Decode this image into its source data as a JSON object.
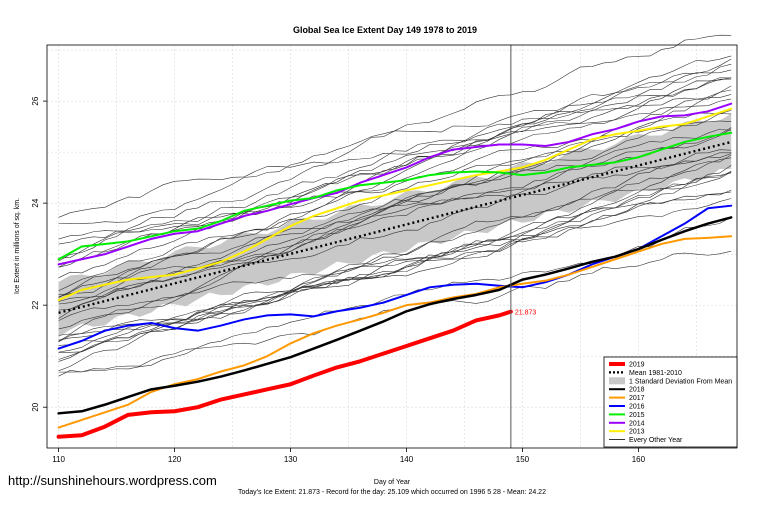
{
  "chart_data": {
    "type": "line",
    "title": "Global Sea Ice Extent Day 149 1978 to 2019",
    "xlabel": "Day of Year",
    "ylabel": "Ice Extent in millions of sq. km.",
    "xlim": [
      109,
      168.5
    ],
    "ylim": [
      19.2,
      27.1
    ],
    "x_ticks": [
      110,
      120,
      130,
      140,
      150,
      160
    ],
    "y_ticks": [
      20,
      22,
      24,
      26
    ],
    "grid": true,
    "current_day": 149,
    "legend_position": "bottom-right",
    "value_label": "21.873",
    "watermark": "http://sunshinehours.wordpress.com",
    "footer": "Today's Ice Extent: 21.873  - Record for the day: 25.109 which occurred on 1996 5 28  - Mean: 24.22",
    "legend": [
      {
        "label": "2019",
        "color": "#ff0000",
        "style": "thick"
      },
      {
        "label": "Mean 1981-2010",
        "color": "#000000",
        "style": "dotted"
      },
      {
        "label": "1 Standard Deviation From Mean",
        "color": "#c8c8c8",
        "style": "band"
      },
      {
        "label": "2018",
        "color": "#000000",
        "style": "line"
      },
      {
        "label": "2017",
        "color": "#ff9900",
        "style": "line"
      },
      {
        "label": "2016",
        "color": "#0000ff",
        "style": "line"
      },
      {
        "label": "2015",
        "color": "#00ee00",
        "style": "line"
      },
      {
        "label": "2014",
        "color": "#9900ff",
        "style": "line"
      },
      {
        "label": "2013",
        "color": "#ffee00",
        "style": "line"
      },
      {
        "label": "Every Other Year",
        "color": "#000000",
        "style": "thin"
      }
    ],
    "mean": {
      "x": [
        110,
        168
      ],
      "y": [
        21.85,
        25.2
      ]
    },
    "std_band": {
      "x": [
        110,
        168
      ],
      "lower": [
        21.45,
        24.65
      ],
      "upper": [
        22.45,
        25.75
      ]
    },
    "series": [
      {
        "name": "2019",
        "color": "#ff0000",
        "width": 4,
        "x": [
          110,
          112,
          114,
          116,
          118,
          120,
          122,
          124,
          126,
          128,
          130,
          132,
          134,
          136,
          138,
          140,
          142,
          144,
          146,
          148,
          149
        ],
        "y": [
          19.42,
          19.45,
          19.62,
          19.85,
          19.9,
          19.92,
          20.0,
          20.15,
          20.25,
          20.35,
          20.45,
          20.62,
          20.78,
          20.9,
          21.05,
          21.2,
          21.35,
          21.5,
          21.7,
          21.8,
          21.873
        ]
      },
      {
        "name": "2018",
        "color": "#000000",
        "width": 2.5,
        "x": [
          110,
          112,
          114,
          116,
          118,
          120,
          122,
          124,
          126,
          128,
          130,
          132,
          134,
          136,
          138,
          140,
          142,
          144,
          146,
          148,
          150,
          152,
          154,
          156,
          158,
          160,
          162,
          164,
          166,
          168
        ],
        "y": [
          19.88,
          19.92,
          20.05,
          20.2,
          20.35,
          20.42,
          20.5,
          20.6,
          20.72,
          20.85,
          20.98,
          21.15,
          21.32,
          21.5,
          21.68,
          21.88,
          22.02,
          22.12,
          22.2,
          22.3,
          22.5,
          22.6,
          22.72,
          22.85,
          22.95,
          23.1,
          23.28,
          23.45,
          23.6,
          23.72
        ]
      },
      {
        "name": "2017",
        "color": "#ff9900",
        "width": 2,
        "x": [
          110,
          112,
          114,
          116,
          118,
          120,
          122,
          124,
          126,
          128,
          130,
          132,
          134,
          136,
          138,
          140,
          142,
          144,
          146,
          148,
          150,
          152,
          154,
          156,
          158,
          160,
          162,
          164,
          166,
          168
        ],
        "y": [
          19.6,
          19.75,
          19.9,
          20.05,
          20.3,
          20.45,
          20.55,
          20.7,
          20.82,
          21.0,
          21.25,
          21.45,
          21.6,
          21.72,
          21.85,
          22.0,
          22.05,
          22.15,
          22.22,
          22.35,
          22.42,
          22.48,
          22.6,
          22.75,
          22.9,
          23.05,
          23.2,
          23.3,
          23.32,
          23.35
        ]
      },
      {
        "name": "2016",
        "color": "#0000ff",
        "width": 2,
        "x": [
          110,
          112,
          114,
          116,
          118,
          120,
          122,
          124,
          126,
          128,
          130,
          132,
          134,
          136,
          138,
          140,
          142,
          144,
          146,
          148,
          150,
          152,
          154,
          156,
          158,
          160,
          162,
          164,
          166,
          168
        ],
        "y": [
          21.15,
          21.3,
          21.5,
          21.6,
          21.65,
          21.55,
          21.5,
          21.6,
          21.72,
          21.8,
          21.82,
          21.78,
          21.88,
          21.95,
          22.05,
          22.2,
          22.35,
          22.4,
          22.42,
          22.38,
          22.35,
          22.45,
          22.6,
          22.8,
          22.95,
          23.1,
          23.35,
          23.6,
          23.9,
          23.95
        ]
      },
      {
        "name": "2015",
        "color": "#00ee00",
        "width": 2,
        "x": [
          110,
          112,
          114,
          116,
          118,
          120,
          122,
          124,
          126,
          128,
          130,
          132,
          134,
          136,
          138,
          140,
          142,
          144,
          146,
          148,
          150,
          152,
          154,
          156,
          158,
          160,
          162,
          164,
          166,
          168
        ],
        "y": [
          22.9,
          23.15,
          23.2,
          23.25,
          23.35,
          23.45,
          23.5,
          23.65,
          23.85,
          23.95,
          24.05,
          24.1,
          24.25,
          24.35,
          24.4,
          24.45,
          24.55,
          24.6,
          24.62,
          24.6,
          24.55,
          24.6,
          24.7,
          24.75,
          24.8,
          24.9,
          25.05,
          25.2,
          25.3,
          25.38
        ]
      },
      {
        "name": "2014",
        "color": "#9900ff",
        "width": 2,
        "x": [
          110,
          112,
          114,
          116,
          118,
          120,
          122,
          124,
          126,
          128,
          130,
          132,
          134,
          136,
          138,
          140,
          142,
          144,
          146,
          148,
          150,
          152,
          154,
          156,
          158,
          160,
          162,
          164,
          166,
          168
        ],
        "y": [
          22.8,
          22.9,
          23.0,
          23.15,
          23.3,
          23.4,
          23.45,
          23.6,
          23.75,
          23.85,
          23.98,
          24.1,
          24.2,
          24.4,
          24.55,
          24.7,
          24.9,
          25.05,
          25.1,
          25.15,
          25.15,
          25.12,
          25.2,
          25.35,
          25.45,
          25.6,
          25.7,
          25.72,
          25.8,
          25.95
        ]
      },
      {
        "name": "2013",
        "color": "#ffee00",
        "width": 2,
        "x": [
          110,
          112,
          114,
          116,
          118,
          120,
          122,
          124,
          126,
          128,
          130,
          132,
          134,
          136,
          138,
          140,
          142,
          144,
          146,
          148,
          150,
          152,
          154,
          156,
          158,
          160,
          162,
          164,
          166,
          168
        ],
        "y": [
          22.1,
          22.3,
          22.4,
          22.5,
          22.55,
          22.6,
          22.72,
          22.85,
          23.05,
          23.3,
          23.55,
          23.75,
          23.9,
          24.05,
          24.15,
          24.25,
          24.35,
          24.45,
          24.55,
          24.62,
          24.7,
          24.85,
          25.05,
          25.25,
          25.35,
          25.42,
          25.5,
          25.55,
          25.7,
          25.85
        ]
      }
    ]
  }
}
